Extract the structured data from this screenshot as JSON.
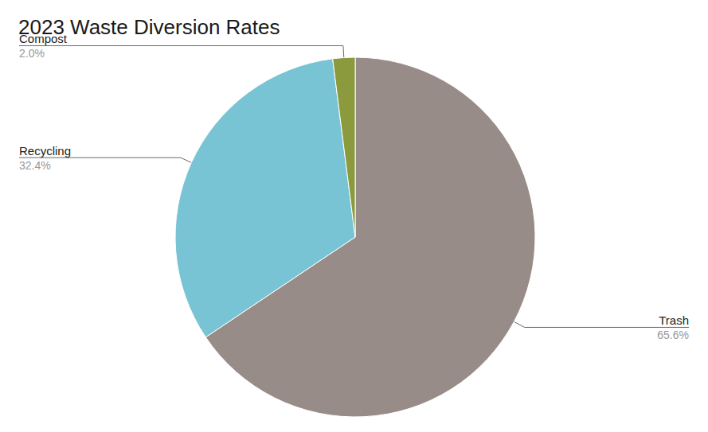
{
  "chart_data": {
    "type": "pie",
    "title": "2023 Waste Diversion Rates",
    "categories": [
      "Trash",
      "Recycling",
      "Compost"
    ],
    "values": [
      65.6,
      32.4,
      2.0
    ],
    "value_labels": [
      "65.6%",
      "32.4%",
      "2.0%"
    ],
    "colors": [
      "#978c87",
      "#78c4d4",
      "#8a9a3c"
    ],
    "data_labels": true
  }
}
